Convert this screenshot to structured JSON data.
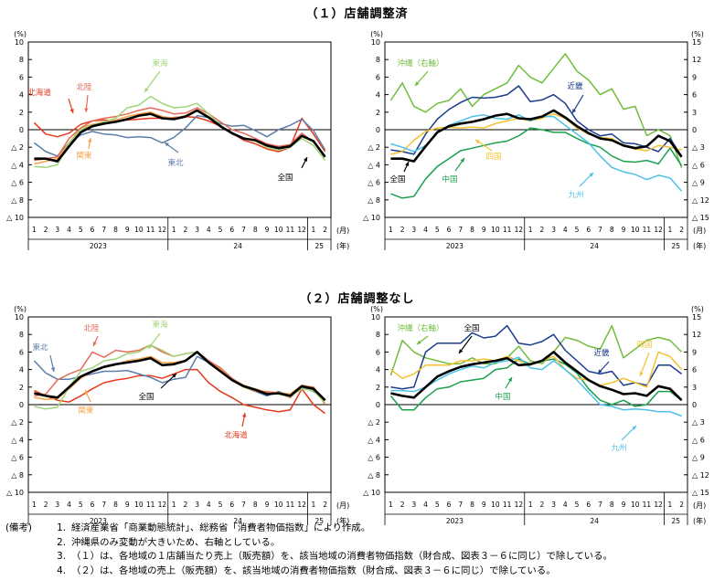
{
  "section1": {
    "title": "（１）店舗調整済"
  },
  "section2": {
    "title": "（２）店舗調整なし"
  },
  "axis_labels": {
    "pct": "(%)",
    "month_unit": "(月)",
    "year_unit": "(年)",
    "months": [
      "1",
      "2",
      "3",
      "4",
      "5",
      "6",
      "7",
      "8",
      "9",
      "10",
      "11",
      "12",
      "1",
      "2",
      "3",
      "4",
      "5",
      "6",
      "7",
      "8",
      "9",
      "10",
      "11",
      "12",
      "1",
      "2"
    ],
    "years": [
      "2023",
      "24",
      "25"
    ],
    "left_ticks": [
      "10",
      "8",
      "6",
      "4",
      "2",
      "0",
      "△ 2",
      "△ 4",
      "△ 6",
      "△ 8",
      "△ 10"
    ],
    "right_ticks": [
      "15",
      "12",
      "9",
      "6",
      "3",
      "0",
      "△ 3",
      "△ 6",
      "△ 9",
      "△ 12",
      "△ 15"
    ]
  },
  "colors": {
    "全国": "#000000",
    "北海道": "#e8381c",
    "東北": "#5b7daa",
    "関東": "#f5a24a",
    "北陸": "#e66c5a",
    "東海": "#9fd678",
    "近畿": "#1b3d8c",
    "中国": "#1aa04f",
    "四国": "#f5c132",
    "九州": "#4ec1e8",
    "沖縄": "#6ebd3c"
  },
  "chart_data": [
    {
      "id": "c1L",
      "type": "line",
      "title": "（１）店舗調整済",
      "xlabel": "(月)(年)",
      "ylabel": "(%)",
      "ylim": [
        -10,
        10
      ],
      "categories": [
        "2023-1",
        "2023-2",
        "2023-3",
        "2023-4",
        "2023-5",
        "2023-6",
        "2023-7",
        "2023-8",
        "2023-9",
        "2023-10",
        "2023-11",
        "2023-12",
        "2024-1",
        "2024-2",
        "2024-3",
        "2024-4",
        "2024-5",
        "2024-6",
        "2024-7",
        "2024-8",
        "2024-9",
        "2024-10",
        "2024-11",
        "2024-12",
        "2025-1",
        "2025-2"
      ],
      "series": [
        {
          "name": "北海道",
          "label": "北海道",
          "color": "#e8381c",
          "width": 1.5,
          "values": [
            0.8,
            -0.5,
            -0.8,
            -0.4,
            0.6,
            1.0,
            1.1,
            1.0,
            1.1,
            1.2,
            1.3,
            1.3,
            1.4,
            1.5,
            1.4,
            1.0,
            0.4,
            -0.4,
            -1.2,
            -1.6,
            -2.2,
            -2.5,
            -2.0,
            1.3,
            -0.5,
            -2.5
          ]
        },
        {
          "name": "東北",
          "label": "東北",
          "color": "#5b7daa",
          "width": 1.5,
          "values": [
            -1.5,
            -2.5,
            -3.0,
            -1.5,
            -0.6,
            -0.2,
            -0.5,
            -0.6,
            -0.9,
            -0.8,
            -0.9,
            -1.5,
            -0.9,
            0.2,
            1.6,
            1.4,
            0.7,
            0.4,
            0.5,
            -0.1,
            -0.8,
            0.0,
            0.5,
            1.2,
            -0.1,
            -2.3
          ]
        },
        {
          "name": "関東",
          "label": "関東",
          "color": "#f5a24a",
          "width": 1.5,
          "values": [
            -3.9,
            -3.6,
            -3.3,
            -1.5,
            0.2,
            0.6,
            0.9,
            1.1,
            1.5,
            1.8,
            2.0,
            1.5,
            1.3,
            1.6,
            2.3,
            1.5,
            0.5,
            -0.5,
            -1.0,
            -1.2,
            -1.8,
            -2.1,
            -1.8,
            -0.8,
            -1.3,
            -3.0
          ]
        },
        {
          "name": "北陸",
          "label": "北陸",
          "color": "#e66c5a",
          "width": 1.5,
          "values": [
            -3.5,
            -3.3,
            -3.1,
            -1.0,
            0.2,
            1.0,
            1.3,
            1.5,
            1.8,
            2.2,
            2.5,
            2.2,
            1.8,
            1.9,
            2.5,
            1.8,
            0.9,
            0.0,
            -0.4,
            -1.0,
            -1.6,
            -1.9,
            -1.7,
            -0.4,
            -1.4,
            -3.0
          ]
        },
        {
          "name": "東海",
          "label": "東海",
          "color": "#9fd678",
          "width": 1.5,
          "values": [
            -4.2,
            -4.3,
            -4.0,
            -1.5,
            0.0,
            0.5,
            0.9,
            1.3,
            2.5,
            2.8,
            3.8,
            3.0,
            2.5,
            2.6,
            3.0,
            1.8,
            0.5,
            -0.5,
            -1.0,
            -1.3,
            -2.0,
            -2.3,
            -2.0,
            -1.0,
            -1.8,
            -3.5
          ]
        },
        {
          "name": "全国",
          "label": "全国",
          "color": "#000000",
          "width": 2.6,
          "values": [
            -3.3,
            -3.3,
            -3.6,
            -1.9,
            -0.3,
            0.4,
            0.7,
            0.9,
            1.2,
            1.6,
            1.8,
            1.3,
            1.2,
            1.5,
            2.2,
            1.4,
            0.4,
            -0.4,
            -1.0,
            -1.2,
            -1.8,
            -2.1,
            -1.9,
            -0.7,
            -1.3,
            -3.1
          ]
        }
      ]
    },
    {
      "id": "c1R",
      "type": "line",
      "title": "（１）店舗調整済",
      "xlabel": "(月)(年)",
      "ylabel": "(%)",
      "ylim": [
        -10,
        10
      ],
      "y2label": "(%)",
      "y2lim": [
        -15,
        15
      ],
      "categories": [
        "2023-1",
        "2023-2",
        "2023-3",
        "2023-4",
        "2023-5",
        "2023-6",
        "2023-7",
        "2023-8",
        "2023-9",
        "2023-10",
        "2023-11",
        "2023-12",
        "2024-1",
        "2024-2",
        "2024-3",
        "2024-4",
        "2024-5",
        "2024-6",
        "2024-7",
        "2024-8",
        "2024-9",
        "2024-10",
        "2024-11",
        "2024-12",
        "2025-1",
        "2025-2"
      ],
      "series": [
        {
          "name": "沖縄（右軸）",
          "label": "沖縄（右軸）",
          "axis": "right",
          "color": "#6ebd3c",
          "width": 1.5,
          "values": [
            5.0,
            8.0,
            4.0,
            3.0,
            4.5,
            5.0,
            7.0,
            4.0,
            6.0,
            7.0,
            8.0,
            11.0,
            9.0,
            8.0,
            10.5,
            13.0,
            10.0,
            8.5,
            6.0,
            7.0,
            3.5,
            4.0,
            -1.0,
            0.0,
            -1.0,
            -6.5
          ]
        },
        {
          "name": "中国",
          "label": "中国",
          "color": "#1aa04f",
          "width": 1.5,
          "values": [
            -7.3,
            -7.8,
            -7.6,
            -5.6,
            -4.2,
            -3.3,
            -2.4,
            -2.1,
            -1.8,
            -1.5,
            -1.3,
            -0.7,
            0.2,
            0.0,
            -0.3,
            -0.3,
            -1.0,
            -1.6,
            -2.0,
            -3.0,
            -3.6,
            -3.7,
            -3.5,
            -3.9,
            -2.1,
            -4.1
          ]
        },
        {
          "name": "近畿",
          "label": "近畿",
          "color": "#1b3d8c",
          "width": 1.5,
          "values": [
            -2.3,
            -2.5,
            -2.8,
            -0.5,
            1.2,
            2.3,
            3.1,
            3.7,
            3.6,
            3.7,
            4.0,
            5.0,
            3.2,
            3.4,
            4.0,
            3.0,
            1.0,
            0.0,
            -0.7,
            -0.5,
            -1.5,
            -1.6,
            -2.0,
            -2.5,
            -1.0,
            -3.0
          ]
        },
        {
          "name": "四国",
          "label": "四国",
          "color": "#f5c132",
          "width": 1.5,
          "values": [
            -2.8,
            -2.5,
            -1.2,
            -0.2,
            0.2,
            0.3,
            0.2,
            0.3,
            0.2,
            0.7,
            1.0,
            1.3,
            1.0,
            1.3,
            1.8,
            1.3,
            0.2,
            -0.5,
            -0.9,
            -1.0,
            -1.8,
            -2.2,
            -2.4,
            -1.8,
            -2.0,
            -2.3
          ]
        },
        {
          "name": "九州",
          "label": "九州",
          "color": "#4ec1e8",
          "width": 1.5,
          "values": [
            -1.6,
            -2.0,
            -2.5,
            -1.8,
            -0.4,
            0.5,
            1.0,
            1.5,
            1.7,
            1.3,
            1.2,
            1.7,
            1.0,
            1.5,
            1.5,
            0.5,
            -0.5,
            -1.5,
            -3.0,
            -4.3,
            -4.8,
            -5.1,
            -5.7,
            -5.2,
            -5.5,
            -7.0
          ]
        },
        {
          "name": "全国",
          "label": "全国",
          "color": "#000000",
          "width": 2.6,
          "values": [
            -3.3,
            -3.3,
            -3.6,
            -1.9,
            -0.3,
            0.4,
            0.7,
            0.9,
            1.2,
            1.6,
            1.8,
            1.3,
            1.2,
            1.5,
            2.2,
            1.4,
            0.4,
            -0.4,
            -1.0,
            -1.2,
            -1.8,
            -2.1,
            -1.9,
            -0.7,
            -1.3,
            -3.1
          ]
        }
      ]
    },
    {
      "id": "c2L",
      "type": "line",
      "title": "（２）店舗調整なし",
      "xlabel": "(月)(年)",
      "ylabel": "(%)",
      "ylim": [
        -10,
        10
      ],
      "categories": [
        "2023-1",
        "2023-2",
        "2023-3",
        "2023-4",
        "2023-5",
        "2023-6",
        "2023-7",
        "2023-8",
        "2023-9",
        "2023-10",
        "2023-11",
        "2023-12",
        "2024-1",
        "2024-2",
        "2024-3",
        "2024-4",
        "2024-5",
        "2024-6",
        "2024-7",
        "2024-8",
        "2024-9",
        "2024-10",
        "2024-11",
        "2024-12",
        "2025-1",
        "2025-2"
      ],
      "series": [
        {
          "name": "北海道",
          "label": "北海道",
          "color": "#e8381c",
          "width": 1.5,
          "values": [
            1.6,
            1.0,
            0.5,
            0.3,
            1.0,
            1.8,
            2.5,
            2.8,
            3.0,
            3.3,
            3.3,
            3.0,
            3.5,
            4.0,
            4.0,
            2.5,
            1.5,
            0.8,
            0.0,
            -0.3,
            -0.6,
            -0.8,
            -0.6,
            1.8,
            0.0,
            -1.0
          ]
        },
        {
          "name": "東北",
          "label": "東北",
          "color": "#5b7daa",
          "width": 1.5,
          "values": [
            5.0,
            3.6,
            2.9,
            2.9,
            3.2,
            3.5,
            3.8,
            3.8,
            3.9,
            3.5,
            3.1,
            2.5,
            2.9,
            3.1,
            5.5,
            4.8,
            3.8,
            2.8,
            2.2,
            1.5,
            1.0,
            1.5,
            1.0,
            2.0,
            1.5,
            0.5
          ]
        },
        {
          "name": "関東",
          "label": "関東",
          "color": "#f5a24a",
          "width": 1.5,
          "values": [
            0.8,
            0.6,
            0.7,
            1.8,
            3.0,
            3.8,
            4.3,
            4.6,
            5.0,
            5.2,
            5.5,
            4.8,
            4.8,
            5.0,
            6.0,
            5.0,
            4.0,
            3.0,
            2.2,
            1.8,
            1.4,
            1.4,
            1.2,
            2.2,
            2.0,
            0.5
          ]
        },
        {
          "name": "北陸",
          "label": "北陸",
          "color": "#e66c5a",
          "width": 1.5,
          "values": [
            1.0,
            1.2,
            2.8,
            3.5,
            4.0,
            6.0,
            5.4,
            6.2,
            6.0,
            6.2,
            6.8,
            6.0,
            5.5,
            5.8,
            6.0,
            5.0,
            4.2,
            3.0,
            2.0,
            1.5,
            1.5,
            1.3,
            0.8,
            2.0,
            2.0,
            0.0
          ]
        },
        {
          "name": "東海",
          "label": "東海",
          "color": "#9fd678",
          "width": 1.5,
          "values": [
            -0.2,
            -0.5,
            -0.3,
            2.0,
            3.8,
            4.2,
            5.0,
            5.2,
            5.8,
            6.0,
            6.8,
            6.2,
            5.5,
            5.8,
            6.0,
            4.8,
            3.8,
            2.8,
            2.0,
            1.6,
            1.3,
            1.2,
            0.9,
            1.8,
            1.6,
            0.2
          ]
        },
        {
          "name": "全国",
          "label": "全国",
          "color": "#000000",
          "width": 2.6,
          "values": [
            1.3,
            1.0,
            0.8,
            2.0,
            3.2,
            3.8,
            4.3,
            4.6,
            4.8,
            5.0,
            5.3,
            4.5,
            4.6,
            5.0,
            6.0,
            4.8,
            3.8,
            2.8,
            2.1,
            1.7,
            1.2,
            1.3,
            1.0,
            2.1,
            1.8,
            0.5
          ]
        }
      ]
    },
    {
      "id": "c2R",
      "type": "line",
      "title": "（２）店舗調整なし",
      "xlabel": "(月)(年)",
      "ylabel": "(%)",
      "ylim": [
        -10,
        10
      ],
      "y2label": "(%)",
      "y2lim": [
        -15,
        15
      ],
      "categories": [
        "2023-1",
        "2023-2",
        "2023-3",
        "2023-4",
        "2023-5",
        "2023-6",
        "2023-7",
        "2023-8",
        "2023-9",
        "2023-10",
        "2023-11",
        "2023-12",
        "2024-1",
        "2024-2",
        "2024-3",
        "2024-4",
        "2024-5",
        "2024-6",
        "2024-7",
        "2024-8",
        "2024-9",
        "2024-10",
        "2024-11",
        "2024-12",
        "2025-1",
        "2025-2"
      ],
      "series": [
        {
          "name": "沖縄（右軸）",
          "label": "沖縄（右軸）",
          "axis": "right",
          "color": "#6ebd3c",
          "width": 1.5,
          "values": [
            5.0,
            11.0,
            9.0,
            8.0,
            7.5,
            7.0,
            7.0,
            8.0,
            7.0,
            7.0,
            8.0,
            10.0,
            7.5,
            7.0,
            9.0,
            11.5,
            11.0,
            10.0,
            9.5,
            13.5,
            8.0,
            9.5,
            11.0,
            11.5,
            11.0,
            9.0
          ]
        },
        {
          "name": "中国",
          "label": "中国",
          "color": "#1aa04f",
          "width": 1.5,
          "values": [
            1.0,
            -0.6,
            -0.6,
            0.8,
            1.8,
            2.0,
            2.6,
            2.8,
            3.0,
            4.0,
            4.2,
            5.2,
            4.6,
            5.0,
            5.2,
            4.6,
            3.6,
            1.8,
            0.5,
            0.0,
            0.5,
            -0.2,
            0.0,
            1.5,
            1.5,
            0.5
          ]
        },
        {
          "name": "近畿",
          "label": "近畿",
          "color": "#1b3d8c",
          "width": 1.5,
          "values": [
            2.0,
            1.8,
            2.0,
            6.0,
            7.0,
            7.0,
            7.0,
            8.2,
            7.6,
            7.8,
            9.0,
            7.0,
            6.8,
            7.2,
            8.0,
            6.2,
            5.0,
            3.8,
            3.5,
            3.8,
            2.2,
            2.5,
            2.2,
            4.5,
            4.5,
            3.5
          ]
        },
        {
          "name": "四国",
          "label": "四国",
          "color": "#f5c132",
          "width": 1.5,
          "values": [
            4.0,
            3.0,
            3.5,
            4.5,
            4.5,
            4.5,
            5.0,
            5.0,
            5.2,
            5.0,
            5.5,
            5.0,
            4.5,
            5.0,
            5.5,
            4.0,
            3.0,
            2.8,
            2.2,
            2.5,
            3.0,
            2.5,
            2.0,
            6.0,
            5.5,
            4.0
          ]
        },
        {
          "name": "九州",
          "label": "九州",
          "color": "#4ec1e8",
          "width": 1.5,
          "values": [
            1.6,
            1.6,
            1.5,
            2.0,
            2.8,
            3.5,
            4.0,
            4.4,
            4.2,
            4.8,
            5.0,
            5.4,
            4.2,
            4.0,
            5.0,
            4.0,
            2.8,
            1.4,
            0.0,
            -0.2,
            -0.6,
            -0.5,
            -0.6,
            -0.8,
            -0.8,
            -1.3
          ]
        },
        {
          "name": "全国",
          "label": "全国",
          "color": "#000000",
          "width": 2.6,
          "values": [
            1.3,
            1.0,
            0.8,
            2.0,
            3.2,
            3.8,
            4.3,
            4.6,
            4.8,
            5.0,
            5.3,
            4.5,
            4.6,
            5.0,
            6.0,
            4.8,
            3.8,
            2.8,
            2.1,
            1.7,
            1.2,
            1.3,
            1.0,
            2.1,
            1.8,
            0.5
          ]
        }
      ]
    }
  ],
  "notes": {
    "heading": "(備考)",
    "items": [
      {
        "num": "1.",
        "text": "経済産業省「商業動態統計」、総務省「消費者物価指数」により作成。"
      },
      {
        "num": "2.",
        "text": "沖縄県のみ変動が大きいため、右軸としている。"
      },
      {
        "num": "3.",
        "text": "（１）は、各地域の１店舗当たり売上（販売額）を、該当地域の消費者物価指数（財合成、図表３－６に同じ）で除している。"
      },
      {
        "num": "4.",
        "text": "（２）は、各地域の売上（販売額）を、該当地域の消費者物価指数（財合成、図表３－６に同じ）で除している。"
      }
    ]
  }
}
